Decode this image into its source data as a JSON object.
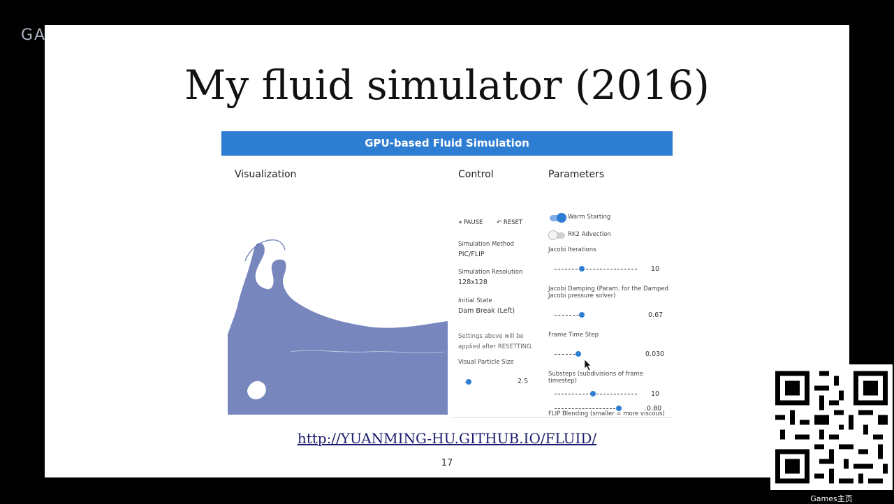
{
  "watermark": "GA",
  "slide": {
    "title": "My fluid simulator (2016)",
    "url": "http://YUANMING-HU.GITHUB.IO/FLUID/",
    "page_number": "17"
  },
  "app": {
    "header": "GPU-based Fluid Simulation",
    "visualization": {
      "label": "Visualization"
    },
    "control": {
      "label": "Control",
      "pause": "PAUSE",
      "reset": "RESET",
      "method_label": "Simulation Method",
      "method_value": "PIC/FLIP",
      "resolution_label": "Simulation Resolution",
      "resolution_value": "128x128",
      "initial_state_label": "Initial State",
      "initial_state_value": "Dam Break (Left)",
      "hint_line1": "Settings above will be",
      "hint_line2": "applied after RESETTING.",
      "particle_size_label": "Visual Particle Size",
      "particle_size_value": "2.5"
    },
    "parameters": {
      "label": "Parameters",
      "warm_starting": "Warm Starting",
      "rk2_advection": "RK2 Advection",
      "jacobi_iterations_label": "Jacobi Iterations",
      "jacobi_iterations_value": "10",
      "jacobi_damping_label": "Jacobi Damping (Param. for the Damped",
      "jacobi_damping_label2": "Jacobi pressure solver)",
      "jacobi_damping_value": "0.67",
      "frame_time_step_label": "Frame Time Step",
      "frame_time_step_value": "0.030",
      "substeps_label": "Substeps (subdivisions of frame timestep)",
      "substeps_value": "10",
      "flip_blending_label": "FLIP Blending (smaller = more viscous)",
      "flip_blending_value": "0.80"
    }
  },
  "qr_caption": "Games主页",
  "colors": {
    "accent": "#2d7dd2",
    "fluid": "#4a5fa8"
  },
  "icons": {
    "pause": "pause-icon",
    "reset": "reset-icon",
    "cursor": "cursor-icon",
    "qr": "qr-code"
  }
}
